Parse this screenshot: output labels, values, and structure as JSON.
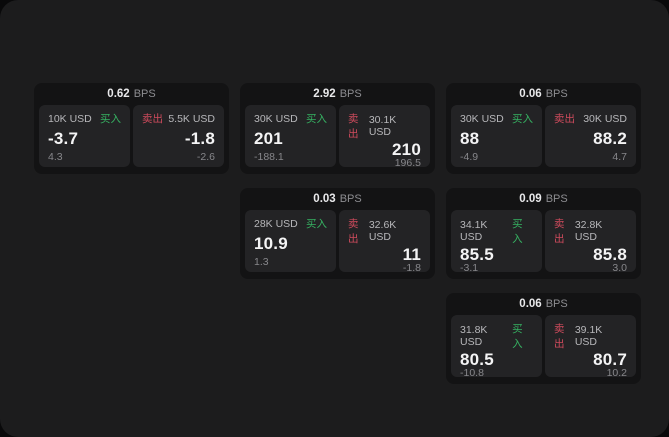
{
  "labels": {
    "bps_unit": "BPS",
    "buy": "买入",
    "sell": "卖出"
  },
  "colors": {
    "outer_bg": "#09090a",
    "panel_bg": "#1c1c1d",
    "card_bg": "#131314",
    "tile_bg": "#232325",
    "buy_green": "#36b262",
    "sell_red": "#cf4b5d",
    "price_text": "#f4f4f5",
    "muted_text": "#87878b"
  },
  "cards": [
    {
      "bps": "0.62",
      "buy": {
        "size": "10K USD",
        "price": "-3.7",
        "sub": "4.3"
      },
      "sell": {
        "size": "5.5K USD",
        "price": "-1.8",
        "sub": "-2.6"
      }
    },
    {
      "bps": "2.92",
      "buy": {
        "size": "30K USD",
        "price": "201",
        "sub": "-188.1"
      },
      "sell": {
        "size": "30.1K USD",
        "price": "210",
        "sub": "196.5"
      }
    },
    {
      "bps": "0.03",
      "buy": {
        "size": "28K USD",
        "price": "10.9",
        "sub": "1.3"
      },
      "sell": {
        "size": "32.6K USD",
        "price": "11",
        "sub": "-1.8"
      }
    },
    {
      "bps": "0.06",
      "buy": {
        "size": "30K USD",
        "price": "88",
        "sub": "-4.9"
      },
      "sell": {
        "size": "30K USD",
        "price": "88.2",
        "sub": "4.7"
      }
    },
    {
      "bps": "0.09",
      "buy": {
        "size": "34.1K USD",
        "price": "85.5",
        "sub": "-3.1"
      },
      "sell": {
        "size": "32.8K USD",
        "price": "85.8",
        "sub": "3.0"
      }
    },
    {
      "bps": "0.06",
      "buy": {
        "size": "31.8K USD",
        "price": "80.5",
        "sub": "-10.8"
      },
      "sell": {
        "size": "39.1K USD",
        "price": "80.7",
        "sub": "10.2"
      }
    }
  ]
}
